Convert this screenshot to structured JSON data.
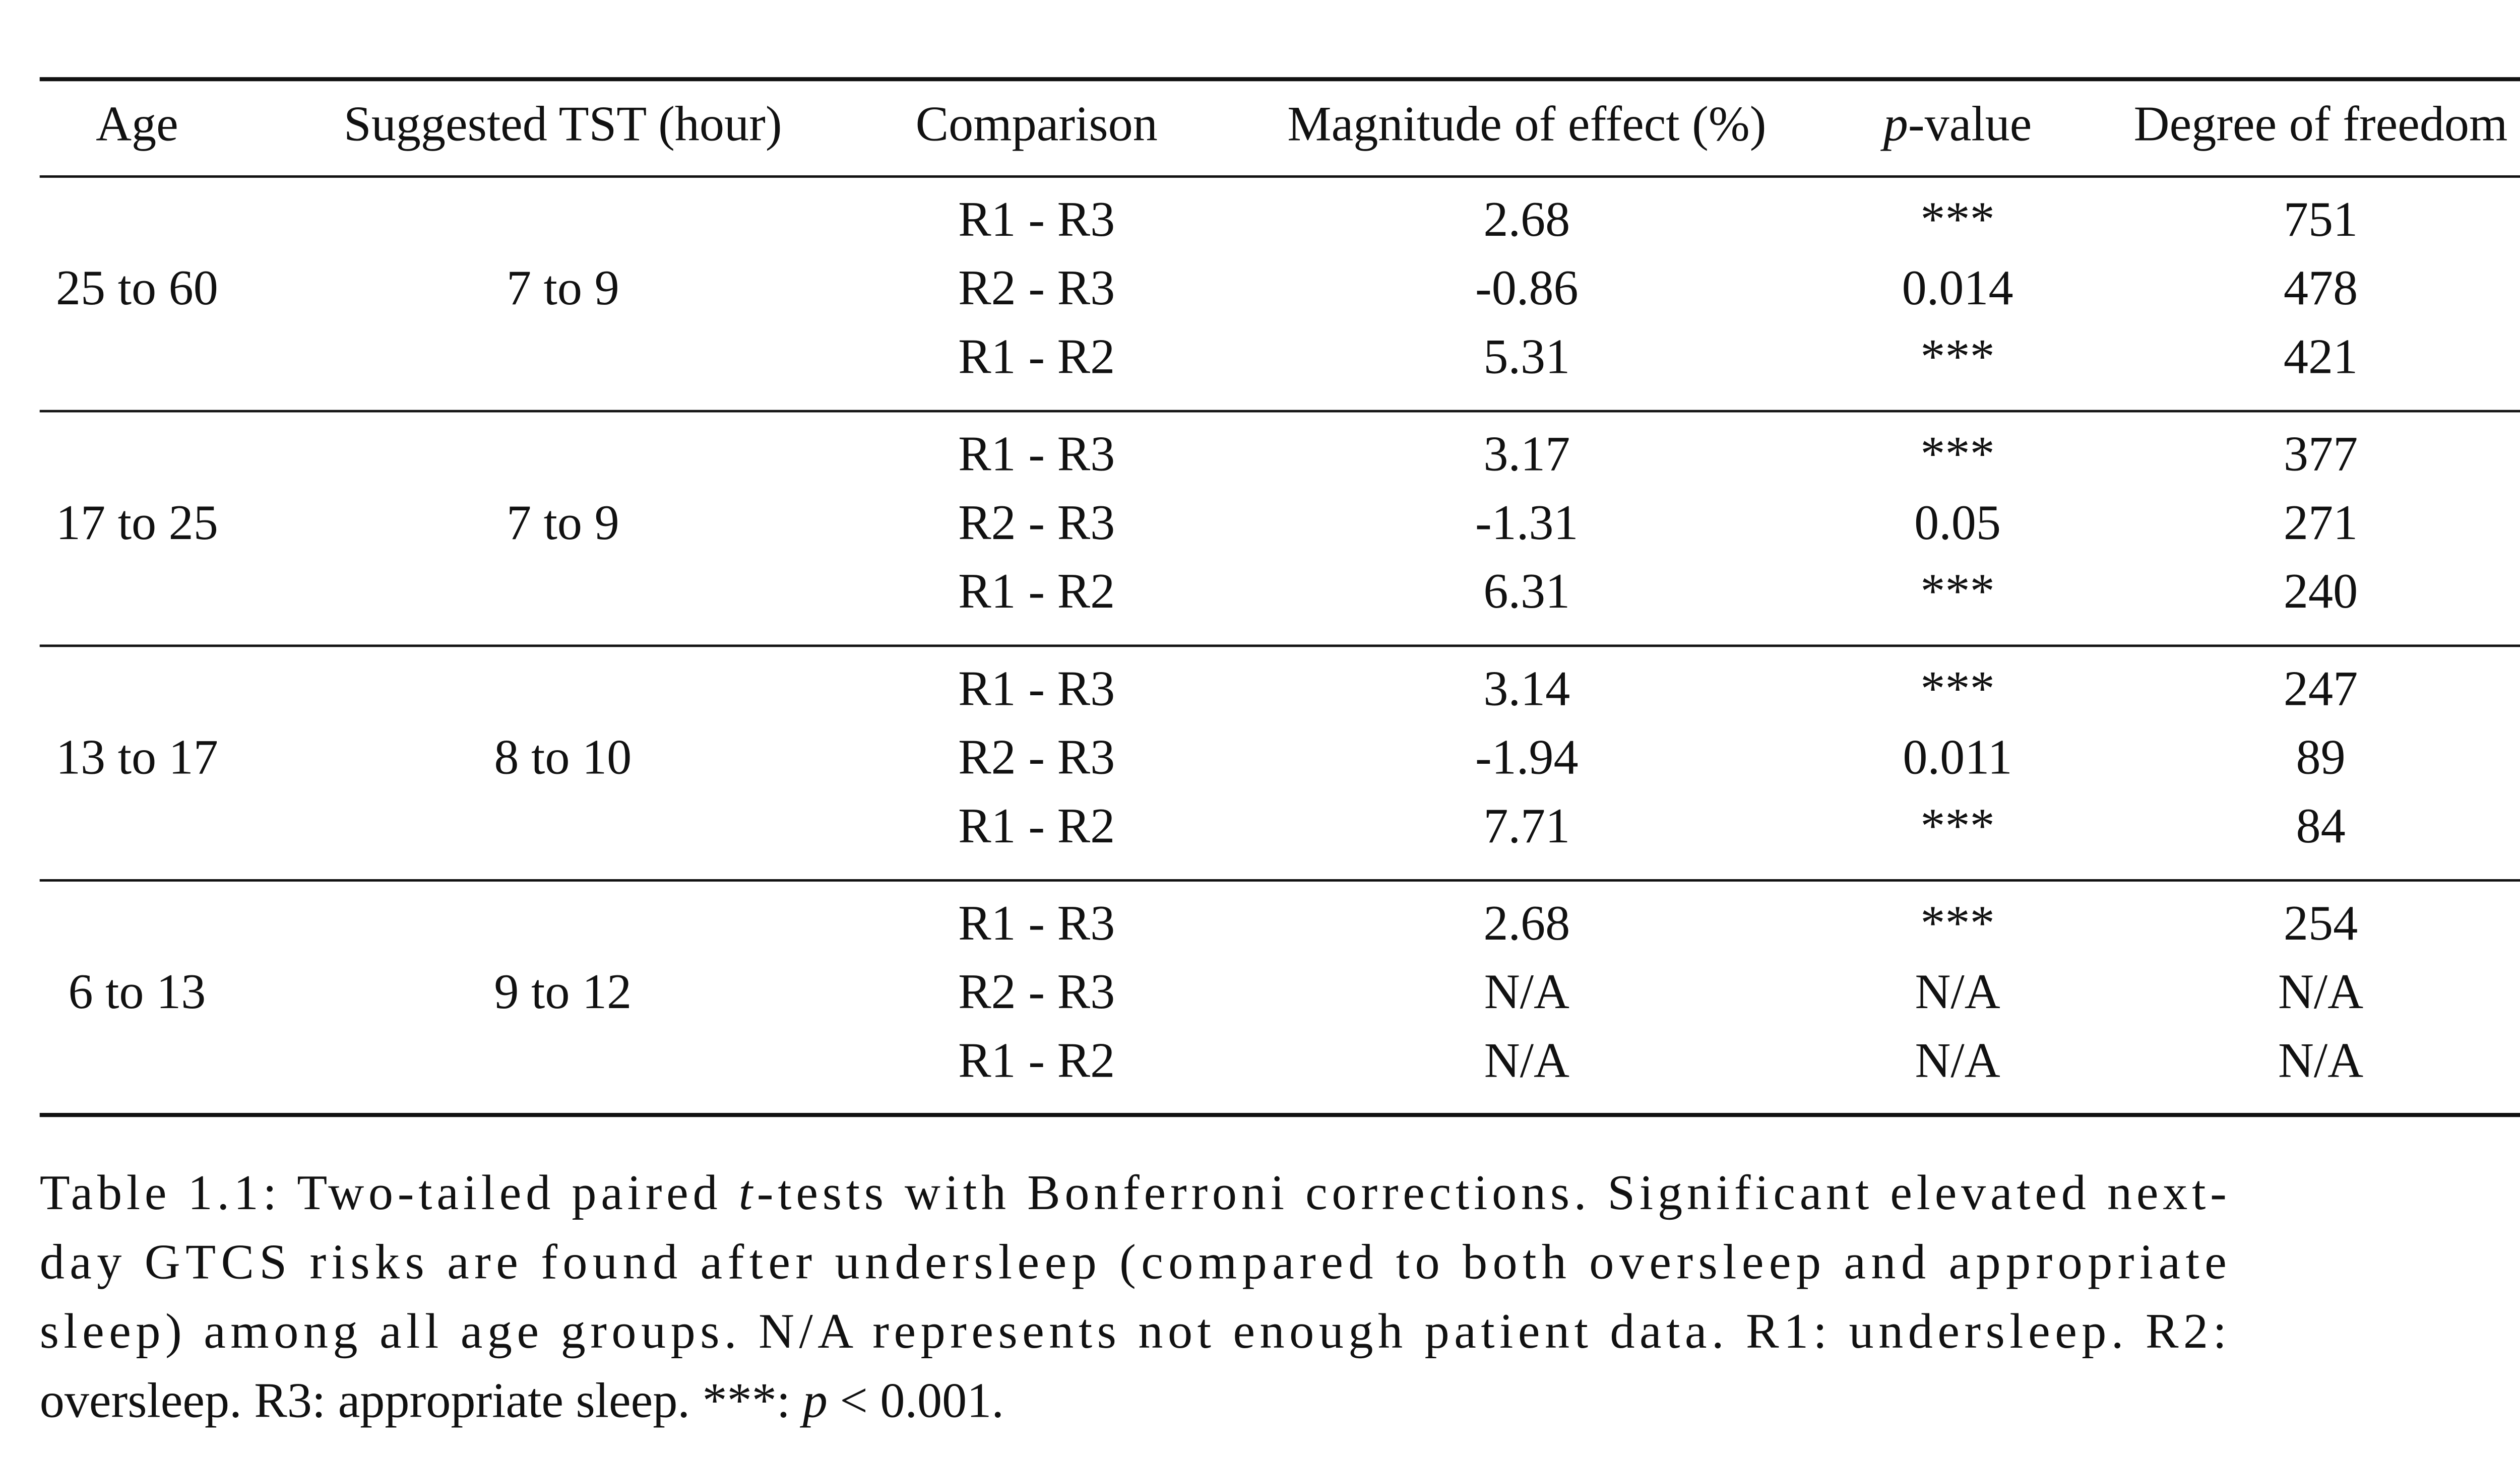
{
  "table": {
    "columns": [
      [
        {
          "text": "Age"
        }
      ],
      [
        {
          "text": "Suggested TST (hour)"
        }
      ],
      [
        {
          "text": "Comparison"
        }
      ],
      [
        {
          "text": "Magnitude of effect (%)"
        }
      ],
      [
        {
          "text": "p",
          "italic": true
        },
        {
          "text": "-value"
        }
      ],
      [
        {
          "text": "Degree of freedom"
        }
      ]
    ],
    "groups": [
      {
        "age": "25 to 60",
        "tst": "7 to 9",
        "rows": [
          [
            "R1 - R3",
            "2.68",
            "***",
            "751"
          ],
          [
            "R2 - R3",
            "-0.86",
            "0.014",
            "478"
          ],
          [
            "R1 - R2",
            "5.31",
            "***",
            "421"
          ]
        ]
      },
      {
        "age": "17 to 25",
        "tst": "7 to 9",
        "rows": [
          [
            "R1 - R3",
            "3.17",
            "***",
            "377"
          ],
          [
            "R2 - R3",
            "-1.31",
            "0.05",
            "271"
          ],
          [
            "R1 - R2",
            "6.31",
            "***",
            "240"
          ]
        ]
      },
      {
        "age": "13 to 17",
        "tst": "8 to 10",
        "rows": [
          [
            "R1 - R3",
            "3.14",
            "***",
            "247"
          ],
          [
            "R2 - R3",
            "-1.94",
            "0.011",
            "89"
          ],
          [
            "R1 - R2",
            "7.71",
            "***",
            "84"
          ]
        ]
      },
      {
        "age": "6 to 13",
        "tst": "9 to 12",
        "rows": [
          [
            "R1 - R3",
            "2.68",
            "***",
            "254"
          ],
          [
            "R2 - R3",
            "N/A",
            "N/A",
            "N/A"
          ],
          [
            "R1 - R2",
            "N/A",
            "N/A",
            "N/A"
          ]
        ]
      }
    ]
  },
  "caption": [
    [
      {
        "text": "Table 1.1: Two-tailed paired "
      },
      {
        "text": "t",
        "italic": true
      },
      {
        "text": "-tests with Bonferroni corrections. Significant elevated next-"
      }
    ],
    [
      {
        "text": "day GTCS risks are found after undersleep (compared to both oversleep and appropriate"
      }
    ],
    [
      {
        "text": "sleep) among all age groups. N/A represents not enough patient data. R1: undersleep. R2:"
      }
    ],
    [
      {
        "text": "oversleep. R3: appropriate sleep. ***: "
      },
      {
        "text": "p",
        "italic": true
      },
      {
        "text": " < 0.001."
      }
    ]
  ]
}
